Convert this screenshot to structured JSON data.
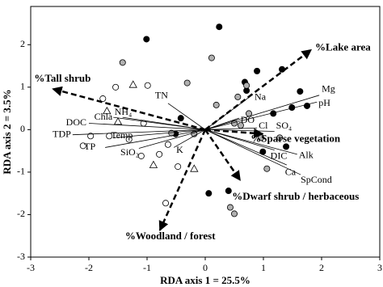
{
  "chart_data": {
    "type": "biplot",
    "x_label": "RDA axis 1 = 25.5%",
    "y_label": "RDA axis 2 = 3.5%",
    "xlim": [
      -3,
      3
    ],
    "ylim": [
      -3,
      2.9
    ],
    "xticks": [
      -3,
      -2,
      -1,
      0,
      1,
      2,
      3
    ],
    "yticks": [
      -3,
      -2,
      -1,
      0,
      1,
      2
    ],
    "grid": false,
    "series": [
      {
        "marker": "circle",
        "color": "#000000",
        "x": [
          -1.01,
          0.24,
          0.89,
          1.32,
          1.63,
          0.68,
          1.49,
          1.75,
          0.71,
          -0.42,
          -0.51,
          0.99,
          1.39,
          0.06,
          0.4,
          1.17
        ],
        "y": [
          2.13,
          2.42,
          1.38,
          1.42,
          0.9,
          1.12,
          0.52,
          0.56,
          0.92,
          0.27,
          -0.1,
          -0.52,
          -0.4,
          -1.5,
          -1.44,
          0.38
        ]
      },
      {
        "marker": "circle",
        "color": "#b0b0b0",
        "x": [
          -1.42,
          0.11,
          -0.31,
          0.71,
          0.56,
          0.19,
          0.5,
          0.75,
          0.96,
          1.28,
          1.06,
          0.43,
          0.5,
          0.61,
          -0.58,
          -0.19
        ],
        "y": [
          1.58,
          1.69,
          1.1,
          1.04,
          0.77,
          0.58,
          0.15,
          0.38,
          -0.19,
          -0.19,
          -0.92,
          -1.83,
          -1.98,
          0.1,
          -0.08,
          -0.1
        ]
      },
      {
        "marker": "circle",
        "color": "#ffffff",
        "x": [
          -1.54,
          -1.76,
          -1.06,
          -1.97,
          -2.1,
          -1.65,
          -1.1,
          -0.79,
          -0.64,
          -0.68,
          -0.99,
          -0.47,
          -1.31
        ],
        "y": [
          1.0,
          0.73,
          0.15,
          -0.15,
          -0.38,
          -0.15,
          -0.62,
          -0.58,
          -0.35,
          -1.73,
          1.04,
          -0.87,
          -0.23
        ]
      },
      {
        "marker": "triangle",
        "color": "#ffffff",
        "x": [
          -1.24,
          -1.69,
          -0.19,
          -0.89,
          -1.5
        ],
        "y": [
          1.06,
          0.44,
          -0.92,
          -0.83,
          0.19
        ]
      }
    ],
    "env_vectors": {
      "line_style": "solid",
      "items": [
        {
          "label": "Mg",
          "x": 1.96,
          "y": 0.81
        },
        {
          "label": "pH",
          "x": 1.92,
          "y": 0.65
        },
        {
          "label": "Na",
          "x": 0.82,
          "y": 0.83
        },
        {
          "label": "DO",
          "x": 0.58,
          "y": 0.27
        },
        {
          "label": "SO₄",
          "x": 1.19,
          "y": -0.04
        },
        {
          "label": "Cl",
          "x": 0.89,
          "y": 0.04
        },
        {
          "label": "DIC",
          "x": 1.19,
          "y": -0.48
        },
        {
          "label": "Alk",
          "x": 1.58,
          "y": -0.58
        },
        {
          "label": "Ca",
          "x": 1.4,
          "y": -0.83
        },
        {
          "label": "SpCond",
          "x": 1.64,
          "y": -1.06
        },
        {
          "label": "TN",
          "x": -0.64,
          "y": 0.62
        },
        {
          "label": "Chla",
          "x": -1.58,
          "y": 0.29
        },
        {
          "label": "NH₄",
          "x": -1.42,
          "y": 0.29
        },
        {
          "label": "DOC",
          "x": -2.0,
          "y": 0.15
        },
        {
          "label": "TDP",
          "x": -2.28,
          "y": -0.12
        },
        {
          "label": "Temp",
          "x": -1.58,
          "y": -0.19
        },
        {
          "label": "TP",
          "x": -1.72,
          "y": -0.42
        },
        {
          "label": "SiO₂",
          "x": -1.14,
          "y": -0.44
        },
        {
          "label": "K",
          "x": -0.54,
          "y": -0.42
        }
      ]
    },
    "vegetation_vectors": {
      "line_style": "dashed",
      "items": [
        {
          "label": "%Lake area",
          "x": 1.82,
          "y": 1.88
        },
        {
          "label": "%Tall shrub",
          "x": -2.62,
          "y": 0.96
        },
        {
          "label": "%Sparse vegetation",
          "x": 0.99,
          "y": -0.1
        },
        {
          "label": "%Dwarf shrub / herbaceous",
          "x": 0.6,
          "y": -1.19
        },
        {
          "label": "%Woodland / forest",
          "x": -0.78,
          "y": -2.37
        }
      ]
    }
  }
}
